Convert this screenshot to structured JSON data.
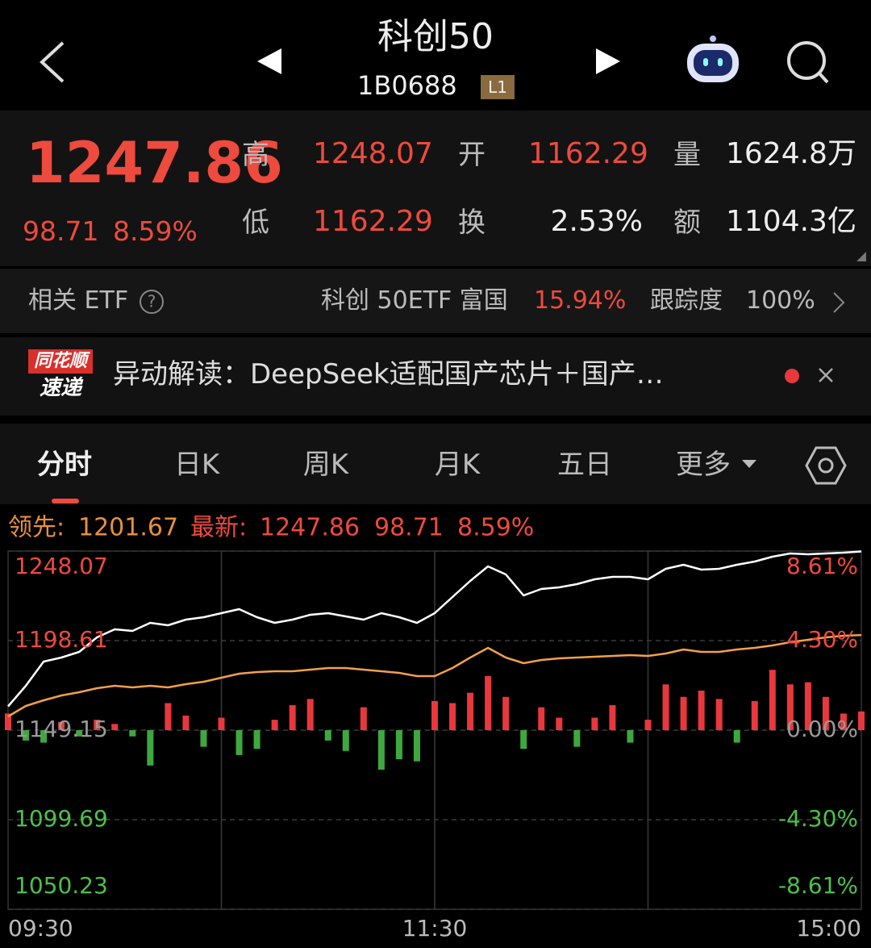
{
  "header": {
    "title": "科创50",
    "code": "1B0688",
    "level": "L1"
  },
  "quote": {
    "price": "1247.86",
    "change": "98.71",
    "change_pct": "8.59%",
    "stats": [
      {
        "label": "高",
        "value": "1248.07"
      },
      {
        "label": "开",
        "value": "1162.29"
      },
      {
        "label": "量",
        "value": "1624.8万"
      },
      {
        "label": "低",
        "value": "1162.29"
      },
      {
        "label": "换",
        "value": "2.53%"
      },
      {
        "label": "额",
        "value": "1104.3亿"
      }
    ]
  },
  "etf": {
    "label": "相关 ETF",
    "name": "科创 50ETF 富国",
    "change": "15.94%",
    "tracking_label": "跟踪度",
    "tracking": "100%"
  },
  "news": {
    "badge_top": "同花顺",
    "badge_bottom": "速递",
    "text": "异动解读：DeepSeek适配国产芯片＋国产…"
  },
  "tabs": [
    "分时",
    "日K",
    "周K",
    "月K",
    "五日",
    "更多"
  ],
  "chart_data": {
    "type": "line",
    "legend": {
      "lead_label": "领先:",
      "lead": "1201.67",
      "latest_label": "最新:",
      "latest": "1247.86",
      "change": "98.71",
      "change_pct": "8.59%"
    },
    "x": [
      0,
      5,
      10,
      15,
      20,
      25,
      30,
      35,
      40,
      45,
      50,
      55,
      60,
      65,
      70,
      75,
      80,
      85,
      90,
      95,
      100,
      105,
      110,
      115,
      120,
      125,
      130,
      135,
      140,
      145,
      150,
      155,
      160,
      165,
      170,
      175,
      180,
      185,
      190,
      195,
      200,
      205,
      210,
      215,
      220,
      225,
      230,
      235,
      240
    ],
    "xlim": [
      0,
      240
    ],
    "xticks": [
      {
        "value": 0,
        "label": "09:30"
      },
      {
        "value": 120,
        "label": "11:30"
      },
      {
        "value": 240,
        "label": "15:00"
      }
    ],
    "xgrid": [
      60,
      120,
      180
    ],
    "ylim": [
      1050.23,
      1248.07
    ],
    "yticks": [
      1248.07,
      1198.61,
      1149.15,
      1099.69,
      1050.23
    ],
    "y2lim": [
      -8.61,
      8.61
    ],
    "y2ticks": [
      {
        "value": 8.61,
        "label": "8.61%"
      },
      {
        "value": 4.3,
        "label": "4.30%"
      },
      {
        "value": 0,
        "label": "0.00%"
      },
      {
        "value": -4.3,
        "label": "-4.30%"
      },
      {
        "value": -8.61,
        "label": "-8.61%"
      }
    ],
    "series": [
      {
        "type": "bar",
        "axis": "y2",
        "up_color": "#e8383d",
        "down_color": "#3ea83e",
        "values": [
          0.8,
          -0.5,
          -0.6,
          0.4,
          -0.3,
          0.5,
          0.3,
          -0.3,
          -1.7,
          1.3,
          0.7,
          -0.8,
          0.6,
          -1.2,
          -0.9,
          0.5,
          1.2,
          1.5,
          -0.5,
          -1.0,
          1.1,
          -1.9,
          -1.4,
          -1.5,
          1.4,
          1.3,
          1.8,
          2.6,
          1.6,
          -0.9,
          1.1,
          0.6,
          -0.8,
          0.6,
          1.2,
          -0.6,
          0.5,
          2.2,
          1.6,
          1.9,
          1.5,
          -0.6,
          1.4,
          2.9,
          2.2,
          2.3,
          1.6,
          0.8,
          0.9
        ]
      },
      {
        "color": "#ffffff",
        "values": [
          1162.29,
          1173.65,
          1187.02,
          1189.25,
          1192.37,
          1200.39,
          1204.85,
          1203.96,
          1208.41,
          1207.07,
          1210.19,
          1211.53,
          1213.76,
          1215.99,
          1211.53,
          1208.41,
          1210.19,
          1212.87,
          1213.76,
          1211.98,
          1210.19,
          1213.76,
          1211.53,
          1208.41,
          1213.76,
          1222.67,
          1231.58,
          1239.6,
          1235.15,
          1223.56,
          1227.13,
          1228.02,
          1229.8,
          1232.47,
          1233.81,
          1233.81,
          1232.47,
          1238.27,
          1240.49,
          1237.82,
          1238.27,
          1240.49,
          1242.28,
          1244.95,
          1246.73,
          1246.29,
          1246.73,
          1247.18,
          1247.86
        ]
      },
      {
        "color": "#f2a04a",
        "values": [
          1156.72,
          1162.51,
          1165.63,
          1168.31,
          1170.09,
          1172.32,
          1173.65,
          1172.76,
          1173.65,
          1172.76,
          1174.55,
          1175.88,
          1178.11,
          1180.34,
          1181.23,
          1181.68,
          1181.68,
          1182.57,
          1183.46,
          1183.46,
          1182.57,
          1181.68,
          1180.78,
          1179.0,
          1179.0,
          1183.46,
          1189.25,
          1194.6,
          1189.25,
          1186.13,
          1187.91,
          1188.81,
          1189.25,
          1189.7,
          1190.14,
          1190.59,
          1190.14,
          1191.48,
          1193.71,
          1192.37,
          1192.37,
          1193.71,
          1194.6,
          1195.93,
          1197.72,
          1199.05,
          1200.39,
          1201.28,
          1201.67
        ]
      }
    ]
  }
}
